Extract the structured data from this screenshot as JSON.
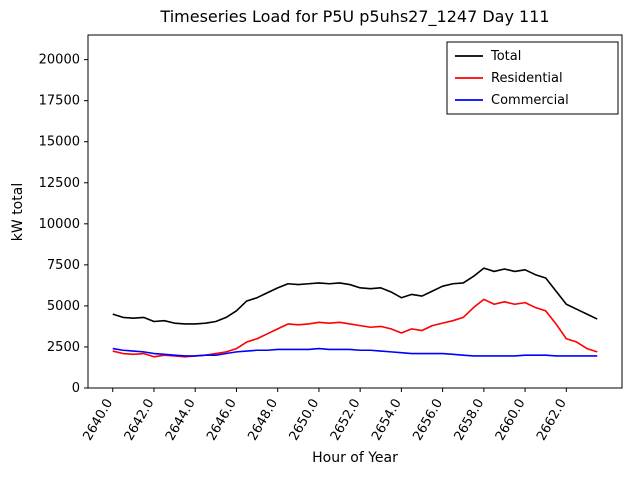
{
  "chart_data": {
    "type": "line",
    "title": "Timeseries Load for P5U p5uhs27_1247  Day 111",
    "xlabel": "Hour of Year",
    "ylabel": "kW total",
    "xlim": [
      2638.8,
      2664.7
    ],
    "ylim": [
      0,
      21500
    ],
    "grid": false,
    "legend_position": "upper right",
    "xticks": [
      2640.0,
      2642.0,
      2644.0,
      2646.0,
      2648.0,
      2650.0,
      2652.0,
      2654.0,
      2656.0,
      2658.0,
      2660.0,
      2662.0
    ],
    "xtick_labels": [
      "2640.0",
      "2642.0",
      "2644.0",
      "2646.0",
      "2648.0",
      "2650.0",
      "2652.0",
      "2654.0",
      "2656.0",
      "2658.0",
      "2660.0",
      "2662.0"
    ],
    "yticks": [
      0,
      2500,
      5000,
      7500,
      10000,
      12500,
      15000,
      17500,
      20000
    ],
    "ytick_labels": [
      "0",
      "2500",
      "5000",
      "7500",
      "10000",
      "12500",
      "15000",
      "17500",
      "20000"
    ],
    "x": [
      2640.0,
      2640.5,
      2641.0,
      2641.5,
      2642.0,
      2642.5,
      2643.0,
      2643.5,
      2644.0,
      2644.5,
      2645.0,
      2645.5,
      2646.0,
      2646.5,
      2647.0,
      2647.5,
      2648.0,
      2648.5,
      2649.0,
      2649.5,
      2650.0,
      2650.5,
      2651.0,
      2651.5,
      2652.0,
      2652.5,
      2653.0,
      2653.5,
      2654.0,
      2654.5,
      2655.0,
      2655.5,
      2656.0,
      2656.5,
      2657.0,
      2657.5,
      2658.0,
      2658.5,
      2659.0,
      2659.5,
      2660.0,
      2660.5,
      2661.0,
      2661.5,
      2662.0,
      2662.5,
      2663.0,
      2663.5
    ],
    "series": [
      {
        "name": "Total",
        "color": "#000000",
        "values": [
          4500,
          4300,
          4250,
          4300,
          4050,
          4100,
          3950,
          3900,
          3900,
          3950,
          4050,
          4300,
          4700,
          5300,
          5500,
          5800,
          6100,
          6350,
          6300,
          6350,
          6400,
          6350,
          6400,
          6300,
          6100,
          6050,
          6100,
          5850,
          5500,
          5700,
          5600,
          5900,
          6200,
          6350,
          6400,
          6800,
          7300,
          7100,
          7250,
          7100,
          7200,
          6900,
          6700,
          5900,
          5100,
          4800,
          4500,
          4200
        ]
      },
      {
        "name": "Residential",
        "color": "#ff0000",
        "values": [
          2250,
          2100,
          2050,
          2100,
          1900,
          2000,
          1950,
          1900,
          1950,
          2000,
          2100,
          2200,
          2400,
          2800,
          3000,
          3300,
          3600,
          3900,
          3850,
          3900,
          4000,
          3950,
          4000,
          3900,
          3800,
          3700,
          3750,
          3600,
          3350,
          3600,
          3500,
          3800,
          3950,
          4100,
          4300,
          4900,
          5400,
          5100,
          5250,
          5100,
          5200,
          4900,
          4700,
          3900,
          3000,
          2800,
          2400,
          2200
        ]
      },
      {
        "name": "Commercial",
        "color": "#0000ff",
        "values": [
          2400,
          2300,
          2250,
          2200,
          2100,
          2050,
          2000,
          1950,
          1950,
          2000,
          2000,
          2100,
          2200,
          2250,
          2300,
          2300,
          2350,
          2350,
          2350,
          2350,
          2400,
          2350,
          2350,
          2350,
          2300,
          2300,
          2250,
          2200,
          2150,
          2100,
          2100,
          2100,
          2100,
          2050,
          2000,
          1950,
          1950,
          1950,
          1950,
          1950,
          2000,
          2000,
          2000,
          1950,
          1950,
          1950,
          1950,
          1950
        ]
      }
    ]
  }
}
